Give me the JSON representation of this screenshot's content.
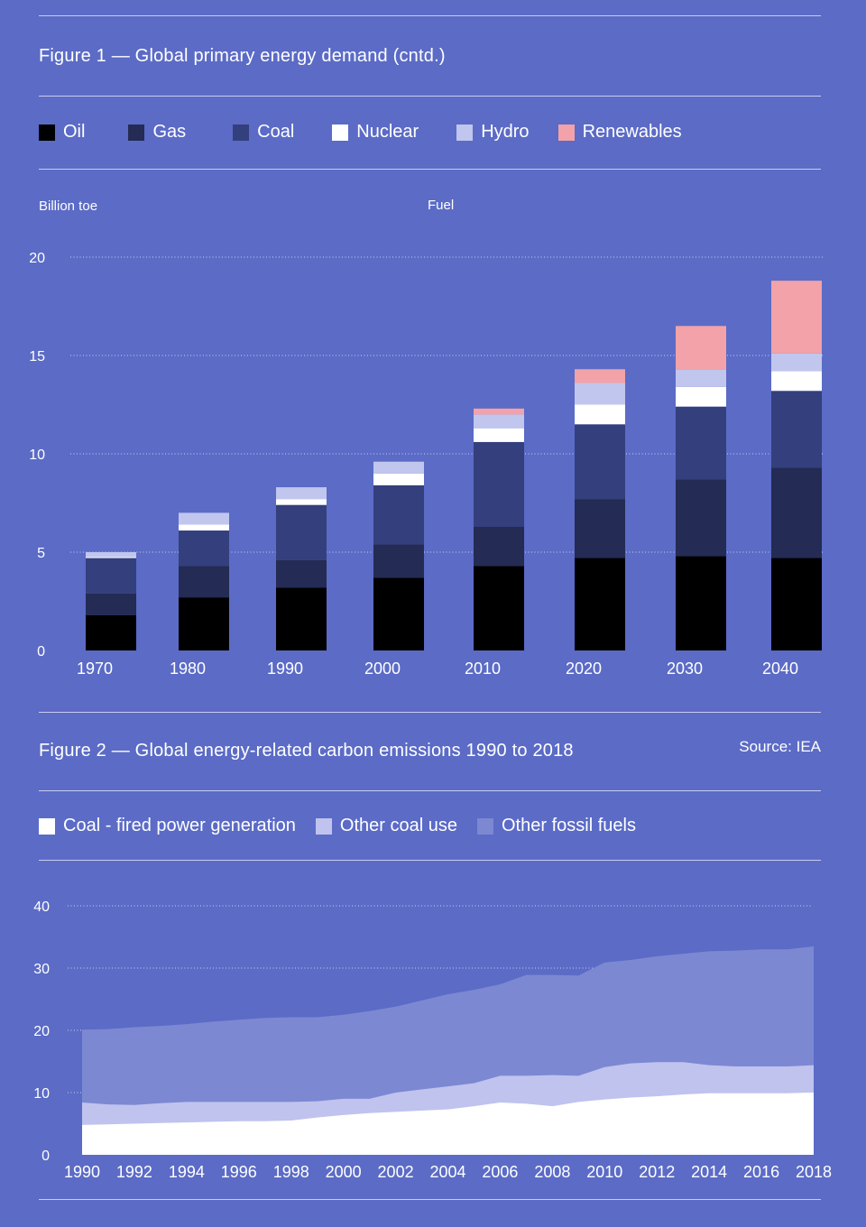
{
  "figure1": {
    "title": "Figure 1 — Global primary energy demand (cntd.)",
    "y_unit_label": "Billion toe",
    "x_group_label": "Fuel",
    "legend": [
      {
        "label": "Oil",
        "color": "#000000"
      },
      {
        "label": "Gas",
        "color": "#242b54"
      },
      {
        "label": "Coal",
        "color": "#343f7d"
      },
      {
        "label": "Nuclear",
        "color": "#ffffff"
      },
      {
        "label": "Hydro",
        "color": "#c1c6ee"
      },
      {
        "label": "Renewables",
        "color": "#f2a2a8"
      }
    ]
  },
  "figure2": {
    "title": "Figure 2 — Global energy-related carbon emissions 1990 to 2018",
    "source": "Source: IEA",
    "legend": [
      {
        "label": "Coal - fired power generation",
        "color": "#ffffff"
      },
      {
        "label": "Other coal use",
        "color": "#bfc3ee"
      },
      {
        "label": "Other fossil fuels",
        "color": "#7c88d2"
      }
    ]
  },
  "chart_data": [
    {
      "type": "bar",
      "stacked": true,
      "title": "Figure 1 — Global primary energy demand (cntd.)",
      "ylabel": "Billion toe",
      "xlabel": "Fuel",
      "ylim": [
        0,
        20
      ],
      "yticks": [
        0,
        5,
        10,
        15,
        20
      ],
      "grid": true,
      "legend_position": "top",
      "categories": [
        "1970",
        "1980",
        "1990",
        "2000",
        "2010",
        "2020",
        "2030",
        "2040"
      ],
      "series": [
        {
          "name": "Oil",
          "color": "#000000",
          "values": [
            1.8,
            2.7,
            3.2,
            3.7,
            4.3,
            4.7,
            4.8,
            4.7
          ]
        },
        {
          "name": "Gas",
          "color": "#242b54",
          "values": [
            1.1,
            1.6,
            1.4,
            1.7,
            2.0,
            3.0,
            3.9,
            4.6
          ]
        },
        {
          "name": "Coal",
          "color": "#343f7d",
          "values": [
            1.8,
            1.8,
            2.8,
            3.0,
            4.3,
            3.8,
            3.7,
            3.9
          ]
        },
        {
          "name": "Nuclear",
          "color": "#ffffff",
          "values": [
            0.05,
            0.3,
            0.3,
            0.6,
            0.7,
            1.0,
            1.0,
            1.0
          ]
        },
        {
          "name": "Hydro",
          "color": "#c1c6ee",
          "values": [
            0.25,
            0.6,
            0.6,
            0.6,
            0.7,
            1.1,
            0.9,
            0.9
          ]
        },
        {
          "name": "Renewables",
          "color": "#f2a2a8",
          "values": [
            0,
            0,
            0,
            0,
            0.3,
            0.7,
            2.2,
            3.7
          ]
        }
      ]
    },
    {
      "type": "area",
      "stacked": true,
      "title": "Figure 2 — Global energy-related carbon emissions 1990 to 2018",
      "ylim": [
        0,
        40
      ],
      "yticks": [
        0,
        10,
        20,
        30,
        40
      ],
      "xlim": [
        1990,
        2018
      ],
      "xticks": [
        1990,
        1992,
        1994,
        1996,
        1998,
        2000,
        2002,
        2004,
        2006,
        2008,
        2010,
        2012,
        2014,
        2016,
        2018
      ],
      "grid": true,
      "legend_position": "top",
      "x": [
        1990,
        1991,
        1992,
        1993,
        1994,
        1995,
        1996,
        1997,
        1998,
        1999,
        2000,
        2001,
        2002,
        2003,
        2004,
        2005,
        2006,
        2007,
        2008,
        2009,
        2010,
        2011,
        2012,
        2013,
        2014,
        2015,
        2016,
        2017,
        2018
      ],
      "series": [
        {
          "name": "Coal - fired power generation",
          "color": "#ffffff",
          "values": [
            4.8,
            4.9,
            5.0,
            5.1,
            5.2,
            5.3,
            5.4,
            5.4,
            5.5,
            6.0,
            6.4,
            6.7,
            6.9,
            7.1,
            7.3,
            7.8,
            8.4,
            8.2,
            7.8,
            8.5,
            8.9,
            9.2,
            9.4,
            9.7,
            9.9,
            9.9,
            9.9,
            9.9,
            10.0
          ]
        },
        {
          "name": "Other coal use",
          "color": "#bfc3ee",
          "values": [
            3.6,
            3.2,
            3.0,
            3.2,
            3.3,
            3.2,
            3.1,
            3.1,
            3.0,
            2.6,
            2.6,
            2.3,
            3.1,
            3.4,
            3.7,
            3.7,
            4.3,
            4.5,
            5.0,
            4.2,
            5.2,
            5.5,
            5.5,
            5.2,
            4.5,
            4.3,
            4.3,
            4.3,
            4.4
          ]
        },
        {
          "name": "Other fossil fuels",
          "color": "#7c88d2",
          "values": [
            11.7,
            12.1,
            12.5,
            12.4,
            12.5,
            12.9,
            13.2,
            13.5,
            13.6,
            13.5,
            13.5,
            14.1,
            13.8,
            14.3,
            14.8,
            15.0,
            14.7,
            16.2,
            16.1,
            16.1,
            16.8,
            16.6,
            17.0,
            17.4,
            18.3,
            18.6,
            18.8,
            18.8,
            19.1
          ]
        }
      ]
    }
  ]
}
